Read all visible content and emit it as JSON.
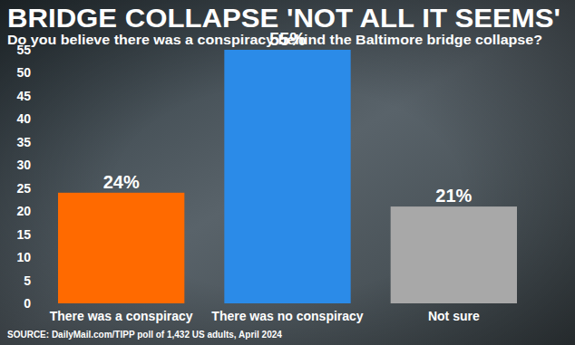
{
  "chart_data": {
    "type": "bar",
    "title": "BRIDGE COLLAPSE 'NOT ALL IT SEEMS'",
    "subtitle": "Do you believe there was a conspiracy behind the Baltimore bridge collapse?",
    "source": "SOURCE: DailyMail.com/TIPP poll of 1,432 US adults, April 2024",
    "categories": [
      "There was a conspiracy",
      "There was no conspiracy",
      "Not sure"
    ],
    "values": [
      24,
      55,
      21
    ],
    "value_labels": [
      "24%",
      "55%",
      "21%"
    ],
    "colors": [
      "#ff6a00",
      "#2b8be8",
      "#a8a8a8"
    ],
    "ylim": [
      0,
      55
    ],
    "yticks": [
      0,
      5,
      10,
      15,
      20,
      25,
      30,
      35,
      40,
      45,
      50,
      55
    ],
    "grid": false,
    "data_labels": true
  }
}
